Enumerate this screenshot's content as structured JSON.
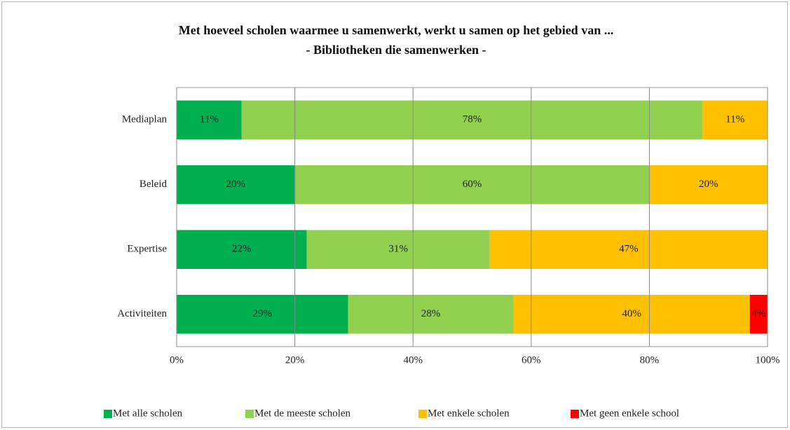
{
  "chart_data": {
    "type": "stacked-barh",
    "title": "Met hoeveel scholen waarmee u samenwerkt, werkt u samen op het gebied van ...",
    "subtitle": "- Bibliotheken die samenwerken -",
    "categories": [
      "Mediaplan",
      "Beleid",
      "Expertise",
      "Activiteiten"
    ],
    "series": [
      {
        "name": "Met alle scholen",
        "color": "#00b050",
        "values": [
          11,
          20,
          22,
          29
        ],
        "value_labels": [
          "11%",
          "20%",
          "22%",
          "29%"
        ]
      },
      {
        "name": "Met de meeste scholen",
        "color": "#92d050",
        "values": [
          78,
          60,
          31,
          28
        ],
        "value_labels": [
          "78%",
          "60%",
          "31%",
          "28%"
        ]
      },
      {
        "name": "Met enkele scholen",
        "color": "#ffc000",
        "values": [
          11,
          20,
          47,
          40
        ],
        "value_labels": [
          "11%",
          "20%",
          "47%",
          "40%"
        ]
      },
      {
        "name": "Met geen enkele school",
        "color": "#ff0000",
        "values": [
          null,
          null,
          null,
          4
        ],
        "value_labels": [
          null,
          null,
          null,
          "4%"
        ]
      }
    ],
    "xlim": [
      0,
      100
    ],
    "xticks": [
      {
        "value": 0,
        "label": "0%"
      },
      {
        "value": 20,
        "label": "20%"
      },
      {
        "value": 40,
        "label": "40%"
      },
      {
        "value": 60,
        "label": "60%"
      },
      {
        "value": 80,
        "label": "80%"
      },
      {
        "value": 100,
        "label": "100%"
      }
    ],
    "grid": true,
    "legend": "bottom"
  }
}
